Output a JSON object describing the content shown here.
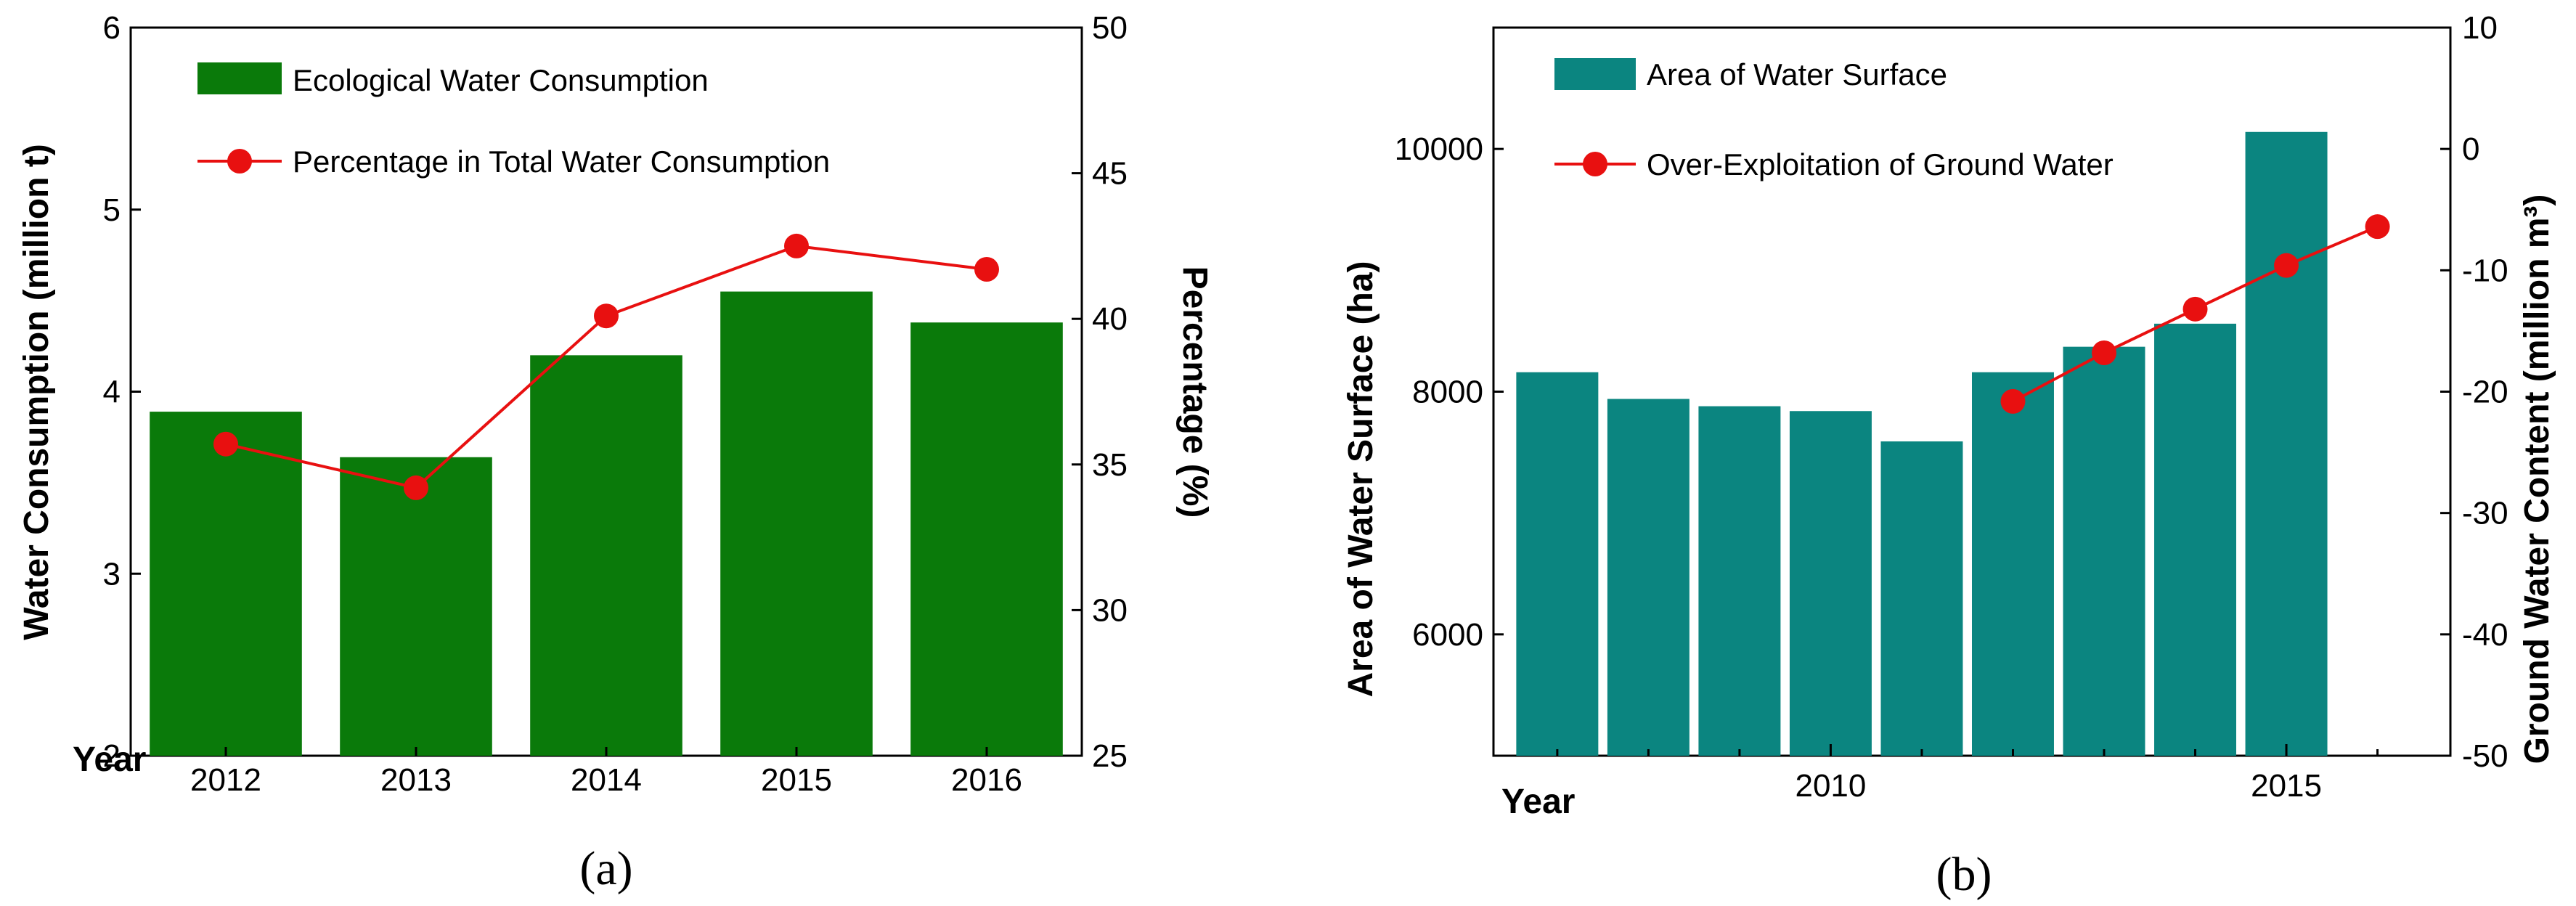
{
  "chart_data": [
    {
      "type": "bar",
      "panel_caption": "(a)",
      "title": "",
      "year_label": "Year",
      "categories": [
        "2012",
        "2013",
        "2014",
        "2015",
        "2016"
      ],
      "series": [
        {
          "name": "Ecological Water Consumption",
          "kind": "bar",
          "axis": "left",
          "color": "#0a7a0a",
          "values": [
            3.89,
            3.64,
            4.2,
            4.55,
            4.38
          ]
        },
        {
          "name": "Percentage in Total Water Consumption",
          "kind": "line",
          "axis": "right",
          "color": "#e81010",
          "values": [
            35.7,
            34.2,
            40.1,
            42.5,
            41.7
          ]
        }
      ],
      "ylabel_left": "Water Consumption (million t)",
      "ylabel_right": "Percentage (%)",
      "ylim_left": [
        2,
        6
      ],
      "ylim_right": [
        25,
        50
      ],
      "yticks_left": [
        "2",
        "3",
        "4",
        "5",
        "6"
      ],
      "yticks_right": [
        "25",
        "30",
        "35",
        "40",
        "45",
        "50"
      ]
    },
    {
      "type": "bar",
      "panel_caption": "(b)",
      "title": "",
      "year_label": "Year",
      "x_range": [
        2006.3,
        2016.8
      ],
      "xticks": [
        "2010",
        "2015"
      ],
      "series": [
        {
          "name": "Area of Water Surface",
          "kind": "bar",
          "axis": "left",
          "color": "#0b8580",
          "x": [
            2007,
            2008,
            2009,
            2010,
            2011,
            2012,
            2013,
            2014,
            2015
          ],
          "values": [
            8160,
            7940,
            7880,
            7840,
            7590,
            8160,
            8370,
            8560,
            10140
          ]
        },
        {
          "name": "Over-Exploitation of Ground Water",
          "kind": "line",
          "axis": "right",
          "color": "#e81010",
          "x": [
            2012,
            2013,
            2014,
            2015,
            2016
          ],
          "values": [
            -20.8,
            -16.8,
            -13.2,
            -9.6,
            -6.4
          ]
        }
      ],
      "ylabel_left": "Area of Water Surface (ha)",
      "ylabel_right": "Ground Water Content (million m³)",
      "ylim_left": [
        5000,
        11000
      ],
      "ylim_right": [
        -50,
        10
      ],
      "yticks_left": [
        "6000",
        "8000",
        "10000"
      ],
      "yticks_right": [
        "10",
        "0",
        "-10",
        "-20",
        "-30",
        "-40",
        "-50"
      ]
    }
  ]
}
